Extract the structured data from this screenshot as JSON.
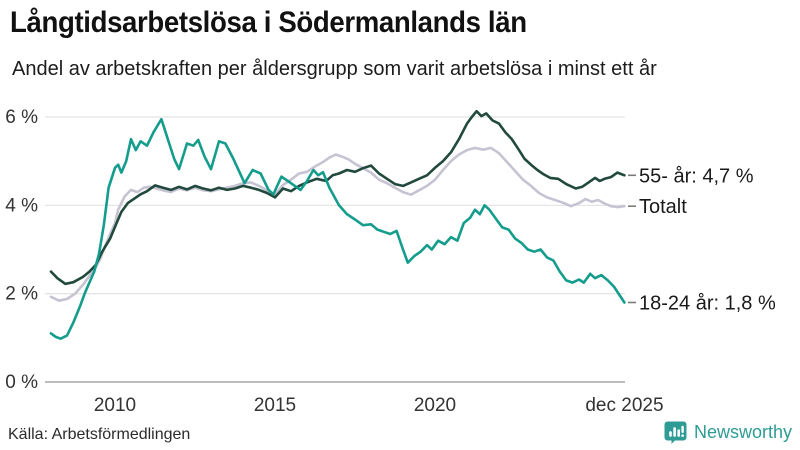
{
  "header": {
    "title": "Långtidsarbetslösa i Södermanlands län",
    "subtitle": "Andel av arbetskraften per åldersgrupp som varit arbetslösa i minst ett år"
  },
  "footer": {
    "source": "Källa: Arbetsförmedlingen",
    "brand_name": "Newsworthy",
    "brand_color": "#2e9b95"
  },
  "chart_data": {
    "type": "line",
    "title": "Långtidsarbetslösa i Södermanlands län",
    "subtitle": "Andel av arbetskraften per åldersgrupp som varit arbetslösa i minst ett år",
    "x_label": "",
    "y_label": "",
    "x_range": [
      2007.85,
      2026.0
    ],
    "y_range": [
      0,
      6.6
    ],
    "grid": true,
    "legend_position": "right-end-labels",
    "y_ticks": [
      {
        "label": "6 %",
        "value": 6
      },
      {
        "label": "4 %",
        "value": 4
      },
      {
        "label": "2 %",
        "value": 2
      },
      {
        "label": "0 %",
        "value": 0
      }
    ],
    "x_ticks": [
      {
        "label": "2010",
        "year": 2010
      },
      {
        "label": "2015",
        "year": 2015
      },
      {
        "label": "2020",
        "year": 2020
      },
      {
        "label": "dec 2025",
        "year": 2025.92
      }
    ],
    "grid_color": "#e3e3e3",
    "axis_color": "#a6a6a6",
    "tick_text_color": "#333333",
    "end_label_color": "#1a1a1a",
    "series": [
      {
        "name": "Totalt",
        "end_label": "Totalt",
        "last_value": 4.0,
        "color": "#c6c3d3",
        "points": [
          [
            2008.0,
            1.93
          ],
          [
            2008.25,
            1.84
          ],
          [
            2008.5,
            1.88
          ],
          [
            2008.75,
            2.0
          ],
          [
            2009.0,
            2.2
          ],
          [
            2009.2,
            2.4
          ],
          [
            2009.4,
            2.6
          ],
          [
            2009.55,
            2.8
          ],
          [
            2009.7,
            3.1
          ],
          [
            2009.85,
            3.35
          ],
          [
            2010.0,
            3.6
          ],
          [
            2010.1,
            3.9
          ],
          [
            2010.3,
            4.2
          ],
          [
            2010.5,
            4.35
          ],
          [
            2010.7,
            4.3
          ],
          [
            2010.9,
            4.4
          ],
          [
            2011.1,
            4.42
          ],
          [
            2011.3,
            4.38
          ],
          [
            2011.5,
            4.34
          ],
          [
            2011.75,
            4.3
          ],
          [
            2012.0,
            4.38
          ],
          [
            2012.25,
            4.34
          ],
          [
            2012.5,
            4.4
          ],
          [
            2012.75,
            4.34
          ],
          [
            2013.0,
            4.32
          ],
          [
            2013.25,
            4.36
          ],
          [
            2013.5,
            4.4
          ],
          [
            2013.75,
            4.44
          ],
          [
            2014.0,
            4.5
          ],
          [
            2014.25,
            4.52
          ],
          [
            2014.5,
            4.44
          ],
          [
            2014.75,
            4.34
          ],
          [
            2015.0,
            4.24
          ],
          [
            2015.25,
            4.46
          ],
          [
            2015.5,
            4.58
          ],
          [
            2015.75,
            4.72
          ],
          [
            2016.0,
            4.76
          ],
          [
            2016.25,
            4.88
          ],
          [
            2016.5,
            4.98
          ],
          [
            2016.7,
            5.08
          ],
          [
            2016.9,
            5.15
          ],
          [
            2017.1,
            5.1
          ],
          [
            2017.3,
            5.04
          ],
          [
            2017.5,
            4.94
          ],
          [
            2017.75,
            4.84
          ],
          [
            2018.0,
            4.74
          ],
          [
            2018.25,
            4.58
          ],
          [
            2018.5,
            4.5
          ],
          [
            2018.75,
            4.4
          ],
          [
            2019.0,
            4.3
          ],
          [
            2019.25,
            4.24
          ],
          [
            2019.5,
            4.34
          ],
          [
            2019.75,
            4.44
          ],
          [
            2020.0,
            4.58
          ],
          [
            2020.25,
            4.8
          ],
          [
            2020.5,
            5.0
          ],
          [
            2020.75,
            5.15
          ],
          [
            2021.0,
            5.25
          ],
          [
            2021.25,
            5.3
          ],
          [
            2021.5,
            5.26
          ],
          [
            2021.75,
            5.3
          ],
          [
            2022.0,
            5.18
          ],
          [
            2022.25,
            4.98
          ],
          [
            2022.5,
            4.78
          ],
          [
            2022.75,
            4.58
          ],
          [
            2023.0,
            4.44
          ],
          [
            2023.25,
            4.28
          ],
          [
            2023.5,
            4.18
          ],
          [
            2023.75,
            4.12
          ],
          [
            2024.0,
            4.06
          ],
          [
            2024.25,
            3.98
          ],
          [
            2024.5,
            4.05
          ],
          [
            2024.7,
            4.14
          ],
          [
            2024.9,
            4.08
          ],
          [
            2025.1,
            4.12
          ],
          [
            2025.3,
            4.04
          ],
          [
            2025.5,
            3.98
          ],
          [
            2025.7,
            3.96
          ],
          [
            2025.92,
            3.98
          ]
        ]
      },
      {
        "name": "55- år",
        "end_label": "55- år: 4,7 %",
        "last_value": 4.7,
        "color": "#21493d",
        "points": [
          [
            2008.0,
            2.5
          ],
          [
            2008.2,
            2.35
          ],
          [
            2008.45,
            2.22
          ],
          [
            2008.7,
            2.26
          ],
          [
            2009.0,
            2.38
          ],
          [
            2009.2,
            2.5
          ],
          [
            2009.4,
            2.65
          ],
          [
            2009.6,
            2.95
          ],
          [
            2009.85,
            3.25
          ],
          [
            2010.05,
            3.6
          ],
          [
            2010.2,
            3.85
          ],
          [
            2010.4,
            4.05
          ],
          [
            2010.6,
            4.15
          ],
          [
            2010.8,
            4.25
          ],
          [
            2011.0,
            4.32
          ],
          [
            2011.25,
            4.45
          ],
          [
            2011.5,
            4.4
          ],
          [
            2011.75,
            4.35
          ],
          [
            2012.0,
            4.42
          ],
          [
            2012.25,
            4.36
          ],
          [
            2012.5,
            4.44
          ],
          [
            2012.75,
            4.38
          ],
          [
            2013.0,
            4.34
          ],
          [
            2013.25,
            4.4
          ],
          [
            2013.5,
            4.35
          ],
          [
            2013.75,
            4.38
          ],
          [
            2014.0,
            4.44
          ],
          [
            2014.25,
            4.4
          ],
          [
            2014.5,
            4.35
          ],
          [
            2014.75,
            4.28
          ],
          [
            2015.0,
            4.18
          ],
          [
            2015.25,
            4.38
          ],
          [
            2015.5,
            4.32
          ],
          [
            2015.75,
            4.44
          ],
          [
            2016.0,
            4.52
          ],
          [
            2016.3,
            4.6
          ],
          [
            2016.6,
            4.55
          ],
          [
            2016.8,
            4.68
          ],
          [
            2017.0,
            4.72
          ],
          [
            2017.25,
            4.8
          ],
          [
            2017.5,
            4.76
          ],
          [
            2017.75,
            4.84
          ],
          [
            2018.0,
            4.9
          ],
          [
            2018.25,
            4.72
          ],
          [
            2018.5,
            4.6
          ],
          [
            2018.75,
            4.48
          ],
          [
            2019.0,
            4.44
          ],
          [
            2019.25,
            4.52
          ],
          [
            2019.5,
            4.6
          ],
          [
            2019.75,
            4.68
          ],
          [
            2020.0,
            4.85
          ],
          [
            2020.25,
            5.0
          ],
          [
            2020.5,
            5.2
          ],
          [
            2020.75,
            5.5
          ],
          [
            2021.0,
            5.85
          ],
          [
            2021.15,
            6.0
          ],
          [
            2021.3,
            6.13
          ],
          [
            2021.45,
            6.02
          ],
          [
            2021.6,
            6.08
          ],
          [
            2021.8,
            5.92
          ],
          [
            2022.0,
            5.85
          ],
          [
            2022.2,
            5.65
          ],
          [
            2022.4,
            5.5
          ],
          [
            2022.6,
            5.28
          ],
          [
            2022.8,
            5.05
          ],
          [
            2023.0,
            4.92
          ],
          [
            2023.2,
            4.8
          ],
          [
            2023.4,
            4.7
          ],
          [
            2023.6,
            4.62
          ],
          [
            2023.85,
            4.6
          ],
          [
            2024.1,
            4.48
          ],
          [
            2024.4,
            4.38
          ],
          [
            2024.6,
            4.42
          ],
          [
            2024.8,
            4.52
          ],
          [
            2025.0,
            4.62
          ],
          [
            2025.15,
            4.55
          ],
          [
            2025.3,
            4.6
          ],
          [
            2025.5,
            4.64
          ],
          [
            2025.7,
            4.74
          ],
          [
            2025.92,
            4.68
          ]
        ]
      },
      {
        "name": "18-24 år",
        "end_label": "18-24 år: 1,8 %",
        "last_value": 1.8,
        "color": "#149c8c",
        "points": [
          [
            2008.0,
            1.1
          ],
          [
            2008.15,
            1.02
          ],
          [
            2008.3,
            0.98
          ],
          [
            2008.5,
            1.05
          ],
          [
            2008.7,
            1.35
          ],
          [
            2008.9,
            1.7
          ],
          [
            2009.05,
            2.0
          ],
          [
            2009.2,
            2.25
          ],
          [
            2009.35,
            2.5
          ],
          [
            2009.5,
            2.9
          ],
          [
            2009.65,
            3.55
          ],
          [
            2009.8,
            4.4
          ],
          [
            2010.0,
            4.85
          ],
          [
            2010.1,
            4.92
          ],
          [
            2010.2,
            4.74
          ],
          [
            2010.35,
            5.0
          ],
          [
            2010.5,
            5.5
          ],
          [
            2010.65,
            5.25
          ],
          [
            2010.8,
            5.45
          ],
          [
            2011.0,
            5.35
          ],
          [
            2011.2,
            5.65
          ],
          [
            2011.45,
            5.95
          ],
          [
            2011.65,
            5.5
          ],
          [
            2011.85,
            5.05
          ],
          [
            2012.0,
            4.82
          ],
          [
            2012.25,
            5.4
          ],
          [
            2012.45,
            5.35
          ],
          [
            2012.6,
            5.48
          ],
          [
            2012.8,
            5.1
          ],
          [
            2013.0,
            4.82
          ],
          [
            2013.25,
            5.45
          ],
          [
            2013.45,
            5.4
          ],
          [
            2013.7,
            5.05
          ],
          [
            2014.05,
            4.5
          ],
          [
            2014.3,
            4.8
          ],
          [
            2014.55,
            4.72
          ],
          [
            2014.8,
            4.35
          ],
          [
            2014.95,
            4.25
          ],
          [
            2015.2,
            4.65
          ],
          [
            2015.4,
            4.55
          ],
          [
            2015.6,
            4.45
          ],
          [
            2015.8,
            4.35
          ],
          [
            2016.0,
            4.55
          ],
          [
            2016.2,
            4.8
          ],
          [
            2016.35,
            4.68
          ],
          [
            2016.5,
            4.75
          ],
          [
            2016.7,
            4.4
          ],
          [
            2017.0,
            4.0
          ],
          [
            2017.25,
            3.8
          ],
          [
            2017.5,
            3.68
          ],
          [
            2017.75,
            3.55
          ],
          [
            2018.0,
            3.57
          ],
          [
            2018.2,
            3.45
          ],
          [
            2018.4,
            3.4
          ],
          [
            2018.6,
            3.35
          ],
          [
            2018.8,
            3.42
          ],
          [
            2019.0,
            3.0
          ],
          [
            2019.15,
            2.7
          ],
          [
            2019.35,
            2.85
          ],
          [
            2019.55,
            2.95
          ],
          [
            2019.75,
            3.1
          ],
          [
            2019.9,
            3.0
          ],
          [
            2020.1,
            3.2
          ],
          [
            2020.3,
            3.12
          ],
          [
            2020.5,
            3.28
          ],
          [
            2020.7,
            3.2
          ],
          [
            2020.9,
            3.6
          ],
          [
            2021.1,
            3.72
          ],
          [
            2021.25,
            3.9
          ],
          [
            2021.4,
            3.8
          ],
          [
            2021.55,
            4.0
          ],
          [
            2021.7,
            3.9
          ],
          [
            2021.9,
            3.7
          ],
          [
            2022.1,
            3.5
          ],
          [
            2022.3,
            3.45
          ],
          [
            2022.5,
            3.25
          ],
          [
            2022.7,
            3.15
          ],
          [
            2022.9,
            3.0
          ],
          [
            2023.1,
            2.95
          ],
          [
            2023.3,
            3.0
          ],
          [
            2023.5,
            2.82
          ],
          [
            2023.7,
            2.75
          ],
          [
            2023.9,
            2.5
          ],
          [
            2024.1,
            2.3
          ],
          [
            2024.3,
            2.25
          ],
          [
            2024.5,
            2.32
          ],
          [
            2024.65,
            2.25
          ],
          [
            2024.85,
            2.45
          ],
          [
            2025.0,
            2.35
          ],
          [
            2025.2,
            2.42
          ],
          [
            2025.4,
            2.3
          ],
          [
            2025.6,
            2.15
          ],
          [
            2025.92,
            1.8
          ]
        ]
      }
    ]
  }
}
